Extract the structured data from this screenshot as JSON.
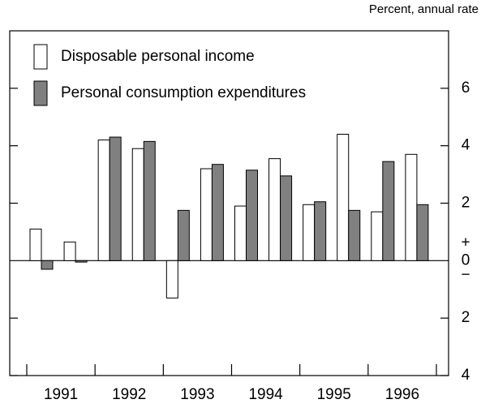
{
  "chart_data": {
    "type": "bar",
    "unit_label": "Percent, annual rate",
    "categories": [
      "1991",
      null,
      "1992",
      null,
      "1993",
      null,
      "1994",
      null,
      "1995",
      null,
      "1996",
      null
    ],
    "series": [
      {
        "name": "Disposable personal income",
        "color": "#ffffff",
        "values": [
          1.1,
          0.65,
          4.2,
          3.9,
          -1.3,
          3.2,
          1.9,
          3.55,
          1.95,
          4.4,
          1.7,
          3.7
        ]
      },
      {
        "name": "Personal consumption expenditures",
        "color": "#808080",
        "values": [
          -0.3,
          -0.05,
          4.3,
          4.15,
          1.75,
          3.35,
          3.15,
          2.95,
          2.05,
          1.75,
          3.45,
          1.95
        ]
      }
    ],
    "ylim": [
      -4,
      8
    ],
    "yticks": [
      6,
      4,
      2,
      0,
      {
        "value": -2,
        "label": "2"
      },
      {
        "value": -4,
        "label": "4"
      }
    ],
    "sign_labels": [
      "+",
      "−"
    ],
    "legend": "top-left"
  }
}
